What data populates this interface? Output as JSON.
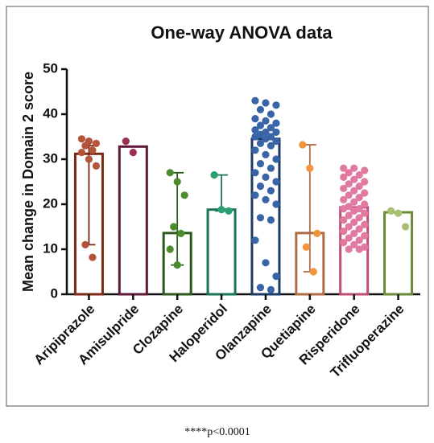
{
  "chart_data": {
    "type": "bar-scatter",
    "title": "One-way ANOVA data",
    "y_label": "Mean change in Domain 2 score",
    "categories": [
      "Aripiprazole",
      "Amisulpride",
      "Clozapine",
      "Haloperidol",
      "Olanzapine",
      "Quetiapine",
      "Risperidone",
      "Trifluoperazine"
    ],
    "values": [
      31.2,
      32.8,
      13.6,
      18.8,
      34.5,
      13.6,
      19.3,
      18.2
    ],
    "colors": [
      "#7a2a16",
      "#5e1838",
      "#2c5a1c",
      "#187656",
      "#1d3a66",
      "#b06c46",
      "#c04c78",
      "#6a8c38"
    ],
    "point_colors": [
      "#b4553a",
      "#9c3050",
      "#4e8a2e",
      "#2aa070",
      "#3a64a8",
      "#f0953e",
      "#e07aa0",
      "#a8c070"
    ],
    "points": [
      [
        34.5,
        34,
        33.5,
        33,
        32,
        31.5,
        30,
        28.5,
        11,
        8.2
      ],
      [
        34,
        31.5
      ],
      [
        27,
        25,
        22,
        15,
        13.5,
        10,
        6.5
      ],
      [
        26.5,
        18.8,
        18.5
      ],
      [
        43,
        42.5,
        42,
        41,
        40,
        39,
        38.5,
        38,
        37.5,
        37,
        36.5,
        36,
        36,
        35.5,
        35,
        35,
        34.5,
        34,
        33.5,
        33,
        32,
        31,
        30,
        29,
        28,
        27,
        26,
        25,
        24,
        23,
        22,
        21,
        20,
        17,
        16.5,
        12,
        7,
        4,
        1.5,
        1
      ],
      [
        33.2,
        28,
        13.5,
        10.5,
        5
      ],
      [
        28,
        28,
        27.5,
        27,
        26.5,
        26,
        25.5,
        25,
        24.5,
        24,
        23.5,
        23,
        22.5,
        22,
        21.5,
        21,
        20.5,
        20,
        19.5,
        19,
        19,
        18.5,
        18,
        17.5,
        17,
        16.5,
        16,
        15.5,
        15,
        14.5,
        14,
        13.5,
        13,
        12.5,
        12,
        11.5,
        11,
        10.5,
        10,
        10
      ],
      [
        18.5,
        18,
        15
      ]
    ],
    "ranges": [
      [
        11,
        33
      ],
      null,
      [
        6.5,
        27
      ],
      [
        18.5,
        26.5
      ],
      null,
      [
        5,
        33.2
      ],
      null,
      null
    ],
    "ylim": [
      0,
      50
    ],
    "yticks": [
      0,
      10,
      20,
      30,
      40,
      50
    ],
    "annotation": "****p<0.0001"
  }
}
